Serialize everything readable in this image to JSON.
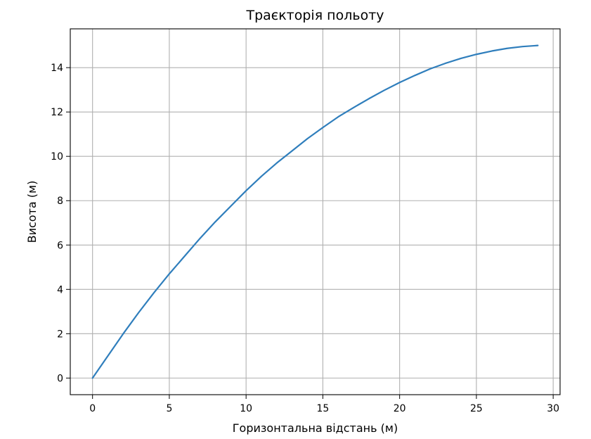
{
  "chart_data": {
    "type": "line",
    "title": "Траєкторія польоту",
    "xlabel": "Горизонтальна відстань (м)",
    "ylabel": "Висота (м)",
    "xlim": [
      -1.45,
      30.45
    ],
    "ylim": [
      -0.75,
      15.75
    ],
    "xticks": [
      0,
      5,
      10,
      15,
      20,
      25,
      30
    ],
    "yticks": [
      0,
      2,
      4,
      6,
      8,
      10,
      12,
      14
    ],
    "grid": true,
    "color": "#2f7ebc",
    "series": [
      {
        "x": [
          0,
          1,
          2,
          3,
          4,
          5,
          6,
          7,
          8,
          9,
          10,
          11,
          12,
          13,
          14,
          15,
          16,
          17,
          18,
          19,
          20,
          21,
          22,
          23,
          24,
          25,
          26,
          27,
          28,
          29
        ],
        "values": [
          0,
          1.0,
          2.0,
          2.95,
          3.85,
          4.7,
          5.5,
          6.3,
          7.05,
          7.75,
          8.45,
          9.1,
          9.7,
          10.25,
          10.8,
          11.3,
          11.78,
          12.2,
          12.6,
          12.98,
          13.33,
          13.65,
          13.95,
          14.2,
          14.42,
          14.6,
          14.75,
          14.87,
          14.95,
          15.0
        ]
      }
    ]
  }
}
